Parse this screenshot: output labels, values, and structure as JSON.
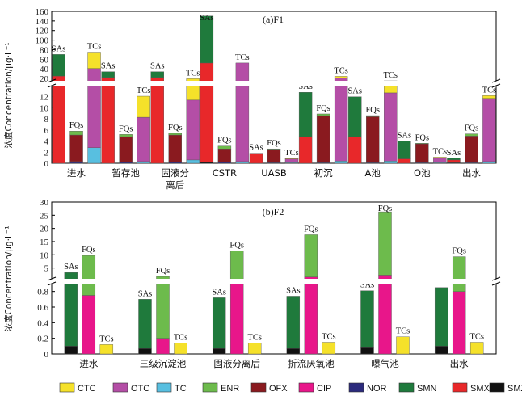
{
  "chart_data": {
    "type": "bar",
    "legend": {
      "position": "bottom",
      "items": [
        {
          "key": "CTC",
          "label": "CTC",
          "color": "#f5e12a"
        },
        {
          "key": "OTC",
          "label": "OTC",
          "color": "#b44ea6"
        },
        {
          "key": "TC",
          "label": "TC",
          "color": "#58bfe0"
        },
        {
          "key": "ENR",
          "label": "ENR",
          "color": "#6dbb4c"
        },
        {
          "key": "OFX",
          "label": "OFX",
          "color": "#8a1a1f"
        },
        {
          "key": "CIP",
          "label": "CIP",
          "color": "#e8168a"
        },
        {
          "key": "NOR",
          "label": "NOR",
          "color": "#2b2a7c"
        },
        {
          "key": "SMN",
          "label": "SMN",
          "color": "#1f7a3c"
        },
        {
          "key": "SMX",
          "label": "SMX",
          "color": "#e8282a"
        },
        {
          "key": "SMZ",
          "label": "SMZ",
          "color": "#111111"
        }
      ]
    },
    "ylabel": "浓度Concentration/μg·L⁻¹",
    "panels": [
      {
        "title": "(a)F1",
        "categories": [
          "进水",
          "暂存池",
          "固液分\n离后",
          "CSTR",
          "UASB",
          "初沉",
          "A池",
          "O池",
          "出水"
        ],
        "yaxis": {
          "lower": [
            0,
            14
          ],
          "lower_ticks": [
            0,
            2,
            4,
            6,
            8,
            10,
            12
          ],
          "upper": [
            15,
            160
          ],
          "upper_ticks": [
            20,
            40,
            60,
            80,
            100,
            120,
            140,
            160
          ]
        },
        "groups": [
          {
            "label": "SAs",
            "stacks": [
              [
                {
                  "k": "SMZ",
                  "v": 0
                },
                {
                  "k": "SMX",
                  "v": 25
                },
                {
                  "k": "SMN",
                  "v": 45
                }
              ],
              [
                {
                  "k": "SMX",
                  "v": 22
                },
                {
                  "k": "SMN",
                  "v": 12
                }
              ],
              [
                {
                  "k": "SMX",
                  "v": 22
                },
                {
                  "k": "SMN",
                  "v": 12
                }
              ],
              [
                {
                  "k": "SMZ",
                  "v": 0.2
                },
                {
                  "k": "SMX",
                  "v": 52
                },
                {
                  "k": "SMN",
                  "v": 98
                }
              ],
              [
                {
                  "k": "SMX",
                  "v": 1.8
                }
              ],
              [
                {
                  "k": "SMX",
                  "v": 4.8
                },
                {
                  "k": "SMN",
                  "v": 8
                }
              ],
              [
                {
                  "k": "SMX",
                  "v": 4.8
                },
                {
                  "k": "SMN",
                  "v": 7.2
                }
              ],
              [
                {
                  "k": "SMX",
                  "v": 0.8
                },
                {
                  "k": "SMN",
                  "v": 3.2
                }
              ],
              [
                {
                  "k": "SMZ",
                  "v": 0.1
                },
                {
                  "k": "SMX",
                  "v": 0.5
                },
                {
                  "k": "SMN",
                  "v": 0.3
                }
              ]
            ]
          },
          {
            "label": "FQs",
            "stacks": [
              [
                {
                  "k": "NOR",
                  "v": 0.3
                },
                {
                  "k": "OFX",
                  "v": 4.8
                },
                {
                  "k": "ENR",
                  "v": 0.7
                }
              ],
              [
                {
                  "k": "NOR",
                  "v": 0.2
                },
                {
                  "k": "OFX",
                  "v": 4.6
                },
                {
                  "k": "ENR",
                  "v": 0.4
                }
              ],
              [
                {
                  "k": "NOR",
                  "v": 0.2
                },
                {
                  "k": "OFX",
                  "v": 4.9
                },
                {
                  "k": "ENR",
                  "v": 0.3
                }
              ],
              [
                {
                  "k": "NOR",
                  "v": 0.2
                },
                {
                  "k": "OFX",
                  "v": 2.4
                },
                {
                  "k": "ENR",
                  "v": 0.5
                }
              ],
              [
                {
                  "k": "NOR",
                  "v": 0.1
                },
                {
                  "k": "OFX",
                  "v": 2.4
                },
                {
                  "k": "ENR",
                  "v": 0.1
                }
              ],
              [
                {
                  "k": "NOR",
                  "v": 0.1
                },
                {
                  "k": "OFX",
                  "v": 8.5
                },
                {
                  "k": "ENR",
                  "v": 0.3
                }
              ],
              [
                {
                  "k": "NOR",
                  "v": 0.1
                },
                {
                  "k": "OFX",
                  "v": 8.3
                },
                {
                  "k": "ENR",
                  "v": 0.2
                }
              ],
              [
                {
                  "k": "NOR",
                  "v": 0.1
                },
                {
                  "k": "OFX",
                  "v": 3.4
                },
                {
                  "k": "ENR",
                  "v": 0.1
                }
              ],
              [
                {
                  "k": "NOR",
                  "v": 0.1
                },
                {
                  "k": "OFX",
                  "v": 4.8
                },
                {
                  "k": "ENR",
                  "v": 0.4
                }
              ]
            ]
          },
          {
            "label": "TCs",
            "stacks": [
              [
                {
                  "k": "TC",
                  "v": 2.8
                },
                {
                  "k": "OTC",
                  "v": 38
                },
                {
                  "k": "CTC",
                  "v": 34
                }
              ],
              [
                {
                  "k": "TC",
                  "v": 0.3
                },
                {
                  "k": "OTC",
                  "v": 8
                },
                {
                  "k": "CTC",
                  "v": 3.8
                }
              ],
              [
                {
                  "k": "TC",
                  "v": 0.6
                },
                {
                  "k": "OTC",
                  "v": 10.8
                },
                {
                  "k": "CTC",
                  "v": 8
                }
              ],
              [
                {
                  "k": "TC",
                  "v": 0.3
                },
                {
                  "k": "OTC",
                  "v": 52
                }
              ],
              [
                {
                  "k": "TC",
                  "v": 0.1
                },
                {
                  "k": "OTC",
                  "v": 0.7
                },
                {
                  "k": "CTC",
                  "v": 0.1
                }
              ],
              [
                {
                  "k": "TC",
                  "v": 0.4
                },
                {
                  "k": "OTC",
                  "v": 21
                },
                {
                  "k": "CTC",
                  "v": 3
                }
              ],
              [
                {
                  "k": "TC",
                  "v": 0.4
                },
                {
                  "k": "OTC",
                  "v": 12.3
                },
                {
                  "k": "CTC",
                  "v": 1.5
                }
              ],
              [
                {
                  "k": "TC",
                  "v": 0.1
                },
                {
                  "k": "OTC",
                  "v": 0.8
                },
                {
                  "k": "CTC",
                  "v": 0.2
                }
              ],
              [
                {
                  "k": "TC",
                  "v": 0.3
                },
                {
                  "k": "OTC",
                  "v": 11.4
                },
                {
                  "k": "CTC",
                  "v": 0.5
                }
              ]
            ]
          }
        ]
      },
      {
        "title": "(b)F2",
        "categories": [
          "进水",
          "三级沉淀池",
          "固液分离后",
          "折流厌氧池",
          "曝气池",
          "出水"
        ],
        "yaxis": {
          "lower": [
            0,
            0.9
          ],
          "lower_ticks": [
            0,
            0.2,
            0.4,
            0.6,
            0.8
          ],
          "upper": [
            0.9,
            30
          ],
          "upper_ticks": [
            5,
            10,
            15,
            20,
            25,
            30
          ]
        },
        "groups": [
          {
            "label": "SAs",
            "stacks": [
              [
                {
                  "k": "SMZ",
                  "v": 0.1
                },
                {
                  "k": "SMN",
                  "v": 3.2
                }
              ],
              [
                {
                  "k": "SMZ",
                  "v": 0.07
                },
                {
                  "k": "SMN",
                  "v": 0.63
                }
              ],
              [
                {
                  "k": "SMZ",
                  "v": 0.07
                },
                {
                  "k": "SMN",
                  "v": 0.65
                }
              ],
              [
                {
                  "k": "SMZ",
                  "v": 0.07
                },
                {
                  "k": "SMN",
                  "v": 0.67
                }
              ],
              [
                {
                  "k": "SMZ",
                  "v": 0.09
                },
                {
                  "k": "SMN",
                  "v": 0.72
                }
              ],
              [
                {
                  "k": "SMZ",
                  "v": 0.1
                },
                {
                  "k": "SMN",
                  "v": 0.75
                }
              ]
            ]
          },
          {
            "label": "FQs",
            "stacks": [
              [
                {
                  "k": "CIP",
                  "v": 0.75
                },
                {
                  "k": "ENR",
                  "v": 9
                }
              ],
              [
                {
                  "k": "CIP",
                  "v": 0.2
                },
                {
                  "k": "ENR",
                  "v": 1.6
                }
              ],
              [
                {
                  "k": "CIP",
                  "v": 0.9
                },
                {
                  "k": "ENR",
                  "v": 10.5
                }
              ],
              [
                {
                  "k": "CIP",
                  "v": 1.6
                },
                {
                  "k": "ENR",
                  "v": 16
                }
              ],
              [
                {
                  "k": "CIP",
                  "v": 2.3
                },
                {
                  "k": "ENR",
                  "v": 24
                }
              ],
              [
                {
                  "k": "CIP",
                  "v": 0.8
                },
                {
                  "k": "ENR",
                  "v": 8.5
                }
              ]
            ]
          },
          {
            "label": "TCs",
            "stacks": [
              [
                {
                  "k": "CTC",
                  "v": 0.12
                }
              ],
              [
                {
                  "k": "CTC",
                  "v": 0.14
                }
              ],
              [
                {
                  "k": "CTC",
                  "v": 0.14
                }
              ],
              [
                {
                  "k": "CTC",
                  "v": 0.15
                }
              ],
              [
                {
                  "k": "CTC",
                  "v": 0.22
                }
              ],
              [
                {
                  "k": "CTC",
                  "v": 0.15
                }
              ]
            ]
          }
        ]
      }
    ]
  }
}
